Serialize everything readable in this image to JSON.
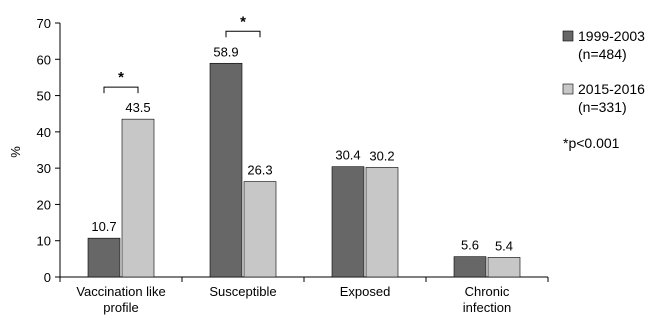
{
  "chart_data": {
    "type": "bar",
    "ylabel": "%",
    "ylim": [
      0,
      70
    ],
    "yticks": [
      0,
      10,
      20,
      30,
      40,
      50,
      60,
      70
    ],
    "grid": false,
    "legend_position": "right",
    "categories": [
      "Vaccination like\nprofile",
      "Susceptible",
      "Exposed",
      "Chronic\ninfection"
    ],
    "series": [
      {
        "name": "1999-2003\n(n=484)",
        "color": "#676767",
        "values": [
          10.7,
          58.9,
          30.4,
          5.6
        ]
      },
      {
        "name": "2015-2016\n(n=331)",
        "color": "#c7c7c7",
        "values": [
          43.5,
          26.3,
          30.2,
          5.4
        ]
      }
    ],
    "data_labels": [
      [
        "10.7",
        "58.9",
        "30.4",
        "5.6"
      ],
      [
        "43.5",
        "26.3",
        "30.2",
        "5.4"
      ]
    ],
    "significance": {
      "marker": "*",
      "categories": [
        0,
        1
      ]
    },
    "annotation": "*p<0.001"
  }
}
